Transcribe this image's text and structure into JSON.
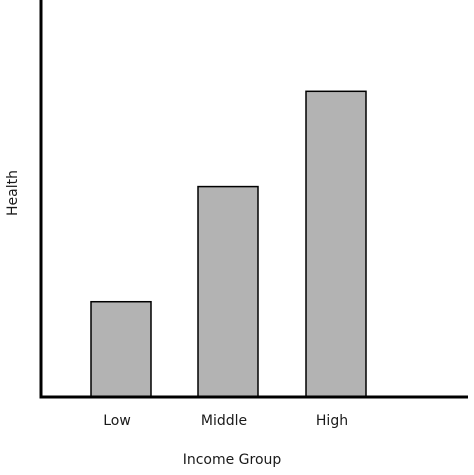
{
  "chart_data": {
    "type": "bar",
    "title": "",
    "xlabel": "Income Group",
    "ylabel": "Health",
    "categories": [
      "Low",
      "Middle",
      "High"
    ],
    "values": [
      0.24,
      0.53,
      0.77
    ],
    "ylim": [
      0,
      1
    ],
    "y_ticks_shown": false,
    "grid": false,
    "legend": "none",
    "bar_color": "#b3b3b3",
    "bar_edge_color": "#000000",
    "axis_color": "#000000"
  }
}
